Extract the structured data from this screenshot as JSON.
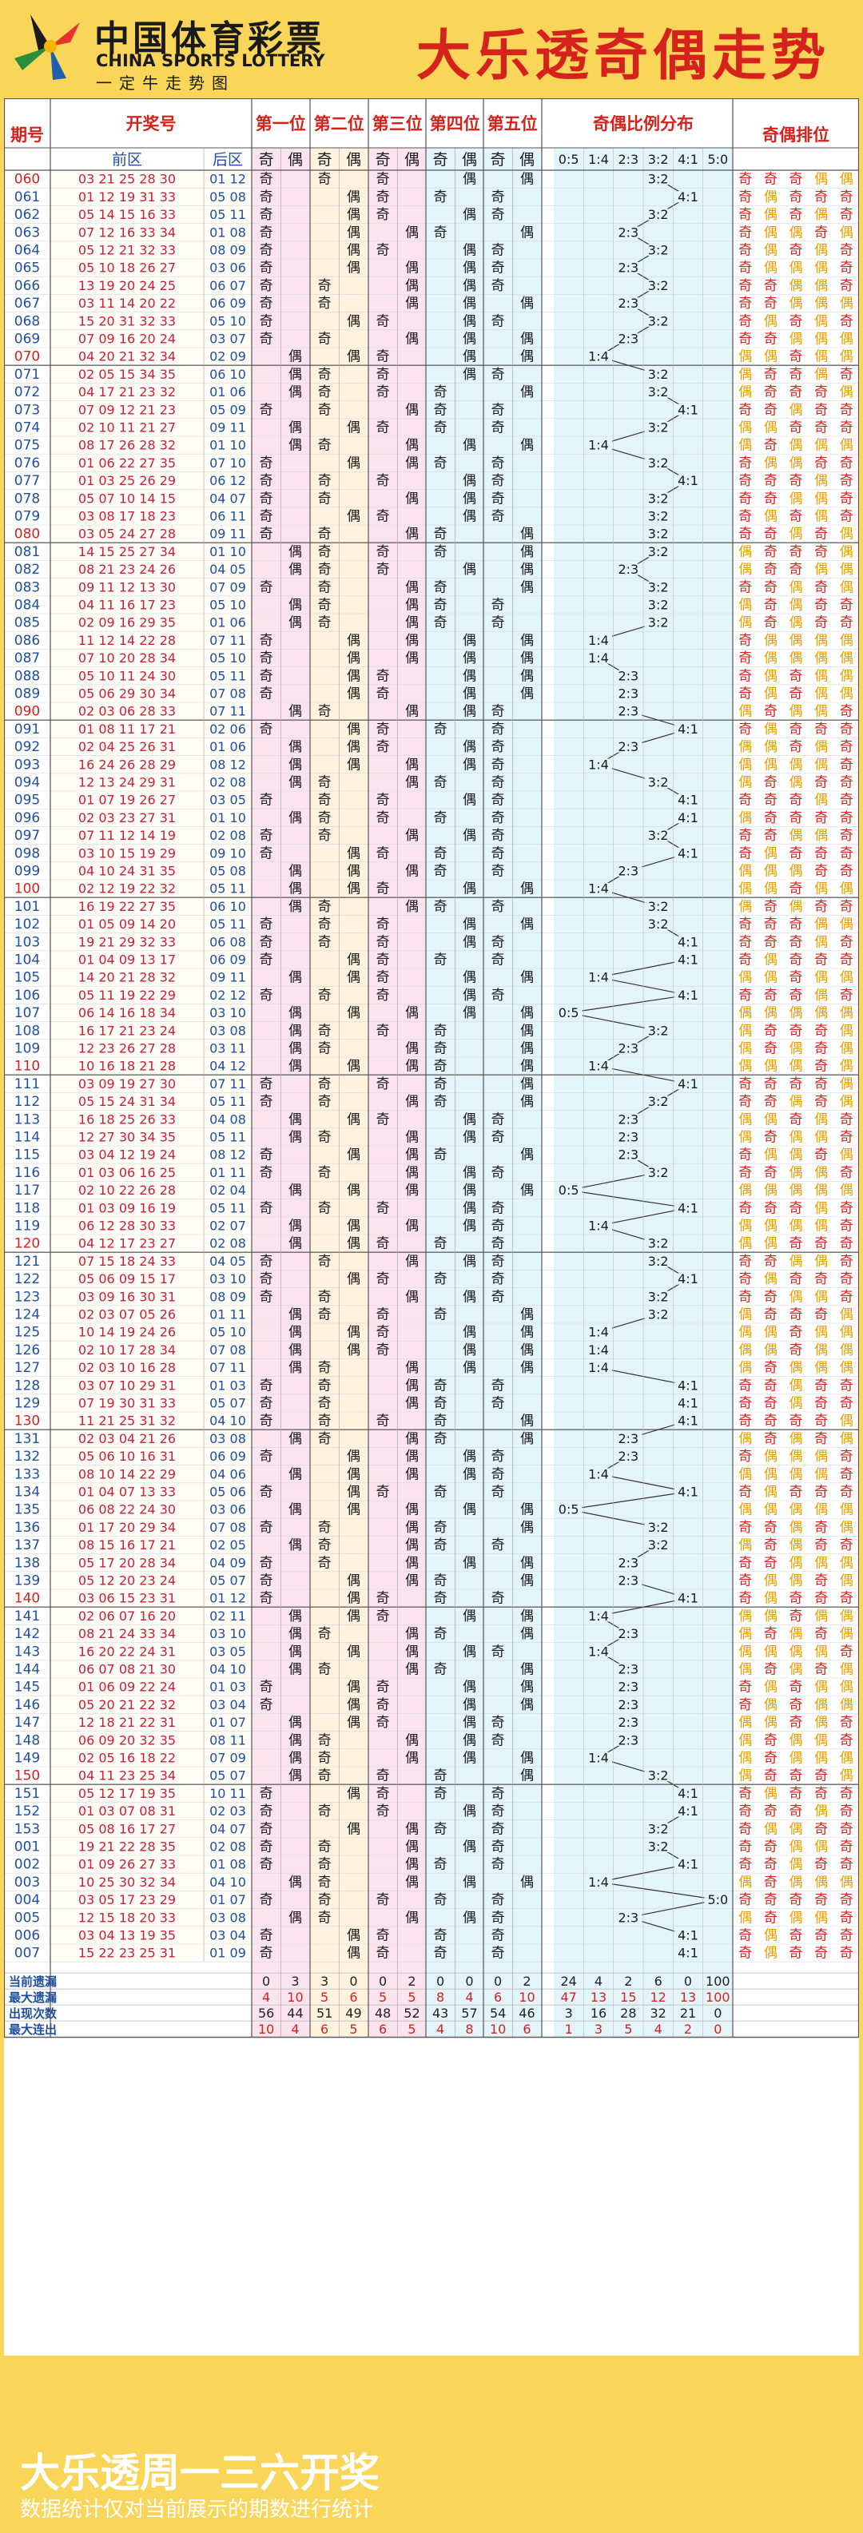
{
  "header": {
    "logo_cn": "中国体育彩票",
    "logo_en": "CHINA SPORTS LOTTERY",
    "logo_sub": "一定牛走势图",
    "title": "大乐透奇偶走势"
  },
  "footer": {
    "title": "大乐透周一三六开奖",
    "note": "数据统计仅对当前展示的期数进行统计"
  },
  "colors": {
    "title": "#d6221d",
    "period": "#1f4fa0",
    "period_last": "#d6221d",
    "front": "#c8203a",
    "back": "#1f4fa0",
    "ratio": "#1a1a1a",
    "odd_marker": "#d6221d",
    "even_marker": "#e8a000",
    "bg_yellow": "#f9d55a",
    "pos1_bg": "#fce4ef",
    "pos2_bg": "#fff3df",
    "pos_alt": "#e3f4fb"
  },
  "chart_data": {
    "type": "table",
    "columns": {
      "period": "期号",
      "numbers": "开奖号",
      "front": "前区",
      "back": "后区",
      "positions": [
        "第一位",
        "第二位",
        "第三位",
        "第四位",
        "第五位"
      ],
      "odd": "奇",
      "even": "偶",
      "ratio_title": "奇偶比例分布",
      "ratio_cats": [
        "0:5",
        "1:4",
        "2:3",
        "3:2",
        "4:1",
        "5:0"
      ],
      "order_title": "奇偶排位"
    },
    "rows": [
      {
        "p": "060",
        "f": "03 21 25 28 30",
        "b": "01 12"
      },
      {
        "p": "061",
        "f": "01 12 19 31 33",
        "b": "05 08"
      },
      {
        "p": "062",
        "f": "05 14 15 16 33",
        "b": "05 11"
      },
      {
        "p": "063",
        "f": "07 12 16 33 34",
        "b": "01 08"
      },
      {
        "p": "064",
        "f": "05 12 21 32 33",
        "b": "08 09"
      },
      {
        "p": "065",
        "f": "05 10 18 26 27",
        "b": "03 06"
      },
      {
        "p": "066",
        "f": "13 19 20 24 25",
        "b": "06 07"
      },
      {
        "p": "067",
        "f": "03 11 14 20 22",
        "b": "06 09"
      },
      {
        "p": "068",
        "f": "15 20 31 32 33",
        "b": "05 10"
      },
      {
        "p": "069",
        "f": "07 09 16 20 24",
        "b": "03 07"
      },
      {
        "p": "070",
        "f": "04 20 21 32 34",
        "b": "02 09"
      },
      {
        "p": "071",
        "f": "02 05 15 34 35",
        "b": "06 10"
      },
      {
        "p": "072",
        "f": "04 17 21 23 32",
        "b": "01 06"
      },
      {
        "p": "073",
        "f": "07 09 12 21 23",
        "b": "05 09"
      },
      {
        "p": "074",
        "f": "02 10 11 21 27",
        "b": "09 11"
      },
      {
        "p": "075",
        "f": "08 17 26 28 32",
        "b": "01 10"
      },
      {
        "p": "076",
        "f": "01 06 22 27 35",
        "b": "07 10"
      },
      {
        "p": "077",
        "f": "01 03 25 26 29",
        "b": "06 12"
      },
      {
        "p": "078",
        "f": "05 07 10 14 15",
        "b": "04 07"
      },
      {
        "p": "079",
        "f": "03 08 17 18 23",
        "b": "06 11"
      },
      {
        "p": "080",
        "f": "03 05 24 27 28",
        "b": "09 11"
      },
      {
        "p": "081",
        "f": "14 15 25 27 34",
        "b": "01 10"
      },
      {
        "p": "082",
        "f": "08 21 23 24 26",
        "b": "04 05"
      },
      {
        "p": "083",
        "f": "09 11 12 13 30",
        "b": "07 09"
      },
      {
        "p": "084",
        "f": "04 11 16 17 23",
        "b": "05 10"
      },
      {
        "p": "085",
        "f": "02 09 16 29 35",
        "b": "01 06"
      },
      {
        "p": "086",
        "f": "11 12 14 22 28",
        "b": "07 11"
      },
      {
        "p": "087",
        "f": "07 10 20 28 34",
        "b": "05 10"
      },
      {
        "p": "088",
        "f": "05 10 11 24 30",
        "b": "05 11"
      },
      {
        "p": "089",
        "f": "05 06 29 30 34",
        "b": "07 08"
      },
      {
        "p": "090",
        "f": "02 03 06 28 33",
        "b": "07 11"
      },
      {
        "p": "091",
        "f": "01 08 11 17 21",
        "b": "02 06"
      },
      {
        "p": "092",
        "f": "02 04 25 26 31",
        "b": "01 06"
      },
      {
        "p": "093",
        "f": "16 24 26 28 29",
        "b": "08 12"
      },
      {
        "p": "094",
        "f": "12 13 24 29 31",
        "b": "02 08"
      },
      {
        "p": "095",
        "f": "01 07 19 26 27",
        "b": "03 05"
      },
      {
        "p": "096",
        "f": "02 03 23 27 31",
        "b": "01 10"
      },
      {
        "p": "097",
        "f": "07 11 12 14 19",
        "b": "02 08"
      },
      {
        "p": "098",
        "f": "03 10 15 19 29",
        "b": "09 10"
      },
      {
        "p": "099",
        "f": "04 10 24 31 35",
        "b": "05 08"
      },
      {
        "p": "100",
        "f": "02 12 19 22 32",
        "b": "05 11"
      },
      {
        "p": "101",
        "f": "16 19 22 27 35",
        "b": "06 10"
      },
      {
        "p": "102",
        "f": "01 05 09 14 20",
        "b": "05 11"
      },
      {
        "p": "103",
        "f": "19 21 29 32 33",
        "b": "06 08"
      },
      {
        "p": "104",
        "f": "01 04 09 13 17",
        "b": "06 09"
      },
      {
        "p": "105",
        "f": "14 20 21 28 32",
        "b": "09 11"
      },
      {
        "p": "106",
        "f": "05 11 19 22 29",
        "b": "02 12"
      },
      {
        "p": "107",
        "f": "06 14 16 18 34",
        "b": "03 10"
      },
      {
        "p": "108",
        "f": "16 17 21 23 24",
        "b": "03 08"
      },
      {
        "p": "109",
        "f": "12 23 26 27 28",
        "b": "03 11"
      },
      {
        "p": "110",
        "f": "10 16 18 21 28",
        "b": "04 12"
      },
      {
        "p": "111",
        "f": "03 09 19 27 30",
        "b": "07 11"
      },
      {
        "p": "112",
        "f": "05 15 24 31 34",
        "b": "05 11"
      },
      {
        "p": "113",
        "f": "16 18 25 26 33",
        "b": "04 08"
      },
      {
        "p": "114",
        "f": "12 27 30 34 35",
        "b": "05 11"
      },
      {
        "p": "115",
        "f": "03 04 12 19 24",
        "b": "08 12"
      },
      {
        "p": "116",
        "f": "01 03 06 16 25",
        "b": "01 11"
      },
      {
        "p": "117",
        "f": "02 10 22 26 28",
        "b": "02 04"
      },
      {
        "p": "118",
        "f": "01 03 09 16 19",
        "b": "05 11"
      },
      {
        "p": "119",
        "f": "06 12 28 30 33",
        "b": "02 07"
      },
      {
        "p": "120",
        "f": "04 12 17 23 27",
        "b": "02 08"
      },
      {
        "p": "121",
        "f": "07 15 18 24 33",
        "b": "04 05"
      },
      {
        "p": "122",
        "f": "05 06 09 15 17",
        "b": "03 10"
      },
      {
        "p": "123",
        "f": "03 09 16 30 31",
        "b": "08 09"
      },
      {
        "p": "124",
        "f": "02 03 07 05 26",
        "b": "01 11"
      },
      {
        "p": "125",
        "f": "10 14 19 24 26",
        "b": "05 10"
      },
      {
        "p": "126",
        "f": "02 10 17 28 34",
        "b": "07 08"
      },
      {
        "p": "127",
        "f": "02 03 10 16 28",
        "b": "07 11"
      },
      {
        "p": "128",
        "f": "03 07 10 29 31",
        "b": "01 03"
      },
      {
        "p": "129",
        "f": "07 19 30 31 33",
        "b": "05 07"
      },
      {
        "p": "130",
        "f": "11 21 25 31 32",
        "b": "04 10"
      },
      {
        "p": "131",
        "f": "02 03 04 21 26",
        "b": "03 08"
      },
      {
        "p": "132",
        "f": "05 06 10 16 31",
        "b": "06 09"
      },
      {
        "p": "133",
        "f": "08 10 14 22 29",
        "b": "04 06"
      },
      {
        "p": "134",
        "f": "01 04 07 13 33",
        "b": "05 06"
      },
      {
        "p": "135",
        "f": "06 08 22 24 30",
        "b": "03 06"
      },
      {
        "p": "136",
        "f": "01 17 20 29 34",
        "b": "07 08"
      },
      {
        "p": "137",
        "f": "08 15 16 17 21",
        "b": "02 05"
      },
      {
        "p": "138",
        "f": "05 17 20 28 34",
        "b": "04 09"
      },
      {
        "p": "139",
        "f": "05 12 20 23 24",
        "b": "05 07"
      },
      {
        "p": "140",
        "f": "03 06 15 23 31",
        "b": "01 12"
      },
      {
        "p": "141",
        "f": "02 06 07 16 20",
        "b": "02 11"
      },
      {
        "p": "142",
        "f": "08 21 24 33 34",
        "b": "03 10"
      },
      {
        "p": "143",
        "f": "16 20 22 24 31",
        "b": "03 05"
      },
      {
        "p": "144",
        "f": "06 07 08 21 30",
        "b": "04 10"
      },
      {
        "p": "145",
        "f": "01 06 09 22 24",
        "b": "01 03"
      },
      {
        "p": "146",
        "f": "05 20 21 22 32",
        "b": "03 04"
      },
      {
        "p": "147",
        "f": "12 18 21 22 31",
        "b": "01 07"
      },
      {
        "p": "148",
        "f": "06 09 20 32 35",
        "b": "08 11"
      },
      {
        "p": "149",
        "f": "02 05 16 18 22",
        "b": "07 09"
      },
      {
        "p": "150",
        "f": "04 11 23 25 34",
        "b": "05 07"
      },
      {
        "p": "151",
        "f": "05 12 17 19 35",
        "b": "10 11"
      },
      {
        "p": "152",
        "f": "01 03 07 08 31",
        "b": "02 03"
      },
      {
        "p": "153",
        "f": "05 08 16 17 27",
        "b": "04 07"
      },
      {
        "p": "001",
        "f": "19 21 22 28 35",
        "b": "02 08"
      },
      {
        "p": "002",
        "f": "01 09 26 27 33",
        "b": "01 08"
      },
      {
        "p": "003",
        "f": "10 25 30 32 34",
        "b": "04 10"
      },
      {
        "p": "004",
        "f": "03 05 17 23 29",
        "b": "01 07"
      },
      {
        "p": "005",
        "f": "12 15 18 20 33",
        "b": "03 08"
      },
      {
        "p": "006",
        "f": "03 04 13 19 35",
        "b": "03 04"
      },
      {
        "p": "007",
        "f": "15 22 23 25 31",
        "b": "01 09"
      }
    ],
    "stats": [
      {
        "label": "当前遗漏",
        "values": [
          0,
          3,
          3,
          0,
          0,
          2,
          0,
          0,
          0,
          2,
          24,
          4,
          2,
          6,
          0,
          100
        ]
      },
      {
        "label": "最大遗漏",
        "values": [
          4,
          10,
          5,
          6,
          5,
          5,
          8,
          4,
          6,
          10,
          47,
          13,
          15,
          12,
          13,
          100
        ]
      },
      {
        "label": "出现次数",
        "values": [
          56,
          44,
          51,
          49,
          48,
          52,
          43,
          57,
          54,
          46,
          3,
          16,
          28,
          32,
          21,
          0
        ]
      },
      {
        "label": "最大连出",
        "values": [
          10,
          4,
          6,
          5,
          6,
          5,
          4,
          8,
          10,
          6,
          1,
          3,
          5,
          4,
          2,
          0
        ]
      }
    ]
  }
}
